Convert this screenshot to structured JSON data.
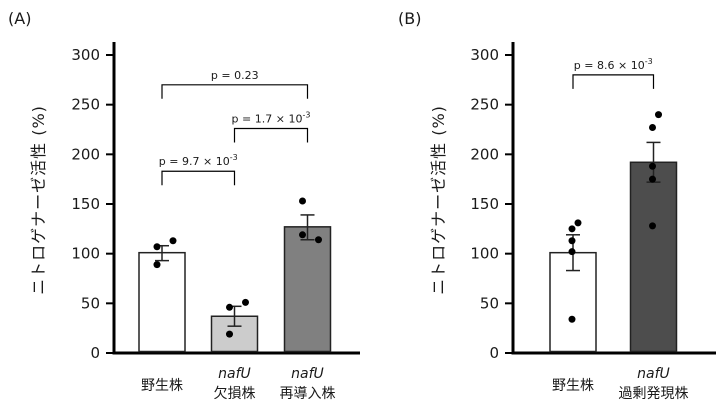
{
  "chart_data": [
    {
      "type": "bar",
      "panel_label": "(A)",
      "ylabel": "ニトロゲナーゼ活性 (%)",
      "ylim": [
        0,
        300
      ],
      "yticks": [
        0,
        50,
        100,
        150,
        200,
        250,
        300
      ],
      "grid": false,
      "categories": [
        {
          "line1": "野生株",
          "line2": ""
        },
        {
          "line1": "nafU",
          "line2": "欠損株"
        },
        {
          "line1": "nafU",
          "line2": "再導入株"
        }
      ],
      "values": [
        101,
        37,
        127
      ],
      "error_upper": [
        108,
        47,
        139
      ],
      "error_lower": [
        93,
        27,
        114
      ],
      "points": [
        [
          107,
          113,
          89
        ],
        [
          46,
          51,
          19
        ],
        [
          153,
          114,
          119
        ]
      ],
      "colors": [
        "#ffffff",
        "#cccccc",
        "#808080"
      ],
      "comparisons": [
        {
          "from": 0,
          "to": 2,
          "label": "p = 0.23",
          "level": 270
        },
        {
          "from": 1,
          "to": 2,
          "label": "p = 1.7 × 10",
          "exp": "-3",
          "level": 226
        },
        {
          "from": 0,
          "to": 1,
          "label": "p = 9.7 × 10",
          "exp": "-3",
          "level": 183
        }
      ]
    },
    {
      "type": "bar",
      "panel_label": "(B)",
      "ylabel": "ニトロゲナーゼ活性 (%)",
      "ylim": [
        0,
        300
      ],
      "yticks": [
        0,
        50,
        100,
        150,
        200,
        250,
        300
      ],
      "grid": false,
      "categories": [
        {
          "line1": "野生株",
          "line2": ""
        },
        {
          "line1": "nafU",
          "line2": "過剰発現株"
        }
      ],
      "values": [
        101,
        192
      ],
      "error_upper": [
        119,
        212
      ],
      "error_lower": [
        83,
        172
      ],
      "points": [
        [
          131,
          125,
          113,
          102,
          34
        ],
        [
          240,
          227,
          188,
          175,
          128
        ]
      ],
      "colors": [
        "#ffffff",
        "#4d4d4d"
      ],
      "comparisons": [
        {
          "from": 0,
          "to": 1,
          "label": "p = 8.6 × 10",
          "exp": "-3",
          "level": 280
        }
      ]
    }
  ]
}
